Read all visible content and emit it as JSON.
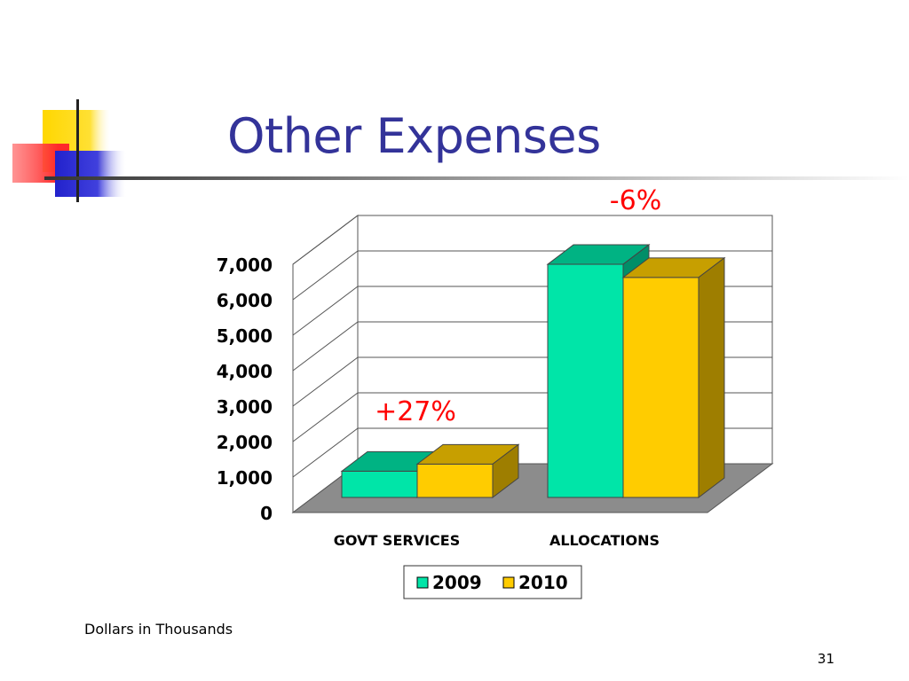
{
  "slide": {
    "title": "Other Expenses",
    "footnote": "Dollars in Thousands",
    "page_number": "31"
  },
  "colors": {
    "title": "#333399",
    "annotation": "#ff0000",
    "series_2009": "#00e5a8",
    "series_2010": "#ffcc00",
    "floor": "#8c8c8c"
  },
  "chart_data": {
    "type": "bar",
    "categories": [
      "GOVT SERVICES",
      "ALLOCATIONS"
    ],
    "series": [
      {
        "name": "2009",
        "values": [
          780,
          6920
        ]
      },
      {
        "name": "2010",
        "values": [
          990,
          6530
        ]
      }
    ],
    "ylim": [
      0,
      7000
    ],
    "yticks": [
      "0",
      "1,000",
      "2,000",
      "3,000",
      "4,000",
      "5,000",
      "6,000",
      "7,000"
    ],
    "annotations": [
      "+27%",
      "-6%"
    ],
    "grid": true,
    "legend": "bottom",
    "style": "3d"
  }
}
